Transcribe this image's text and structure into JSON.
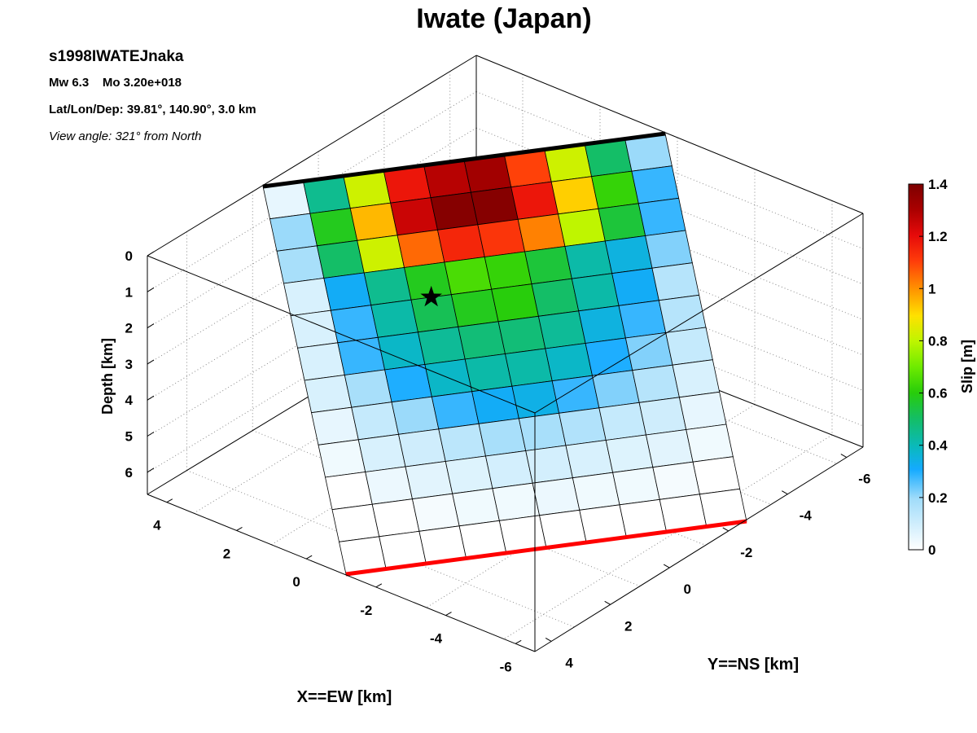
{
  "figure": {
    "title": "Iwate (Japan)",
    "event_id": "s1998IWATEJnaka",
    "magnitude_line": "Mw 6.3    Mo 3.20e+018",
    "location_line": "Lat/Lon/Dep: 39.81°, 140.90°, 3.0 km",
    "view_line": "View angle: 321° from North"
  },
  "chart_data": {
    "type": "heatmap",
    "subtype": "3d fault slip distribution",
    "title": "Iwate (Japan)",
    "axes": {
      "x": {
        "label": "X==EW [km]",
        "ticks": [
          "4",
          "2",
          "0",
          "-2",
          "-4",
          "-6"
        ]
      },
      "y": {
        "label": "Y==NS [km]",
        "ticks": [
          "4",
          "2",
          "0",
          "-2",
          "-4",
          "-6"
        ]
      },
      "z": {
        "label": "Depth [km]",
        "ticks": [
          "0",
          "1",
          "2",
          "3",
          "4",
          "5",
          "6"
        ]
      }
    },
    "grid": true,
    "colorbar": {
      "label": "Slip [m]",
      "range": [
        0,
        1.4
      ],
      "ticks": [
        "0",
        "0.2",
        "0.4",
        "0.6",
        "0.8",
        "1",
        "1.2",
        "1.4"
      ],
      "placement": "right"
    },
    "fault_top_edge_color": "#000000",
    "fault_bottom_edge_color": "#ff0000",
    "hypocenter_marker": "star",
    "hypocenter_cell": [
      4,
      3.5
    ],
    "slip_m": [
      [
        0.05,
        0.45,
        0.82,
        1.18,
        1.28,
        1.32,
        1.1,
        0.82,
        0.5,
        0.2
      ],
      [
        0.2,
        0.58,
        0.95,
        1.25,
        1.38,
        1.38,
        1.18,
        0.92,
        0.62,
        0.28
      ],
      [
        0.18,
        0.5,
        0.82,
        1.05,
        1.15,
        1.12,
        1.02,
        0.8,
        0.55,
        0.28
      ],
      [
        0.08,
        0.32,
        0.45,
        0.58,
        0.65,
        0.62,
        0.55,
        0.42,
        0.35,
        0.22
      ],
      [
        0.08,
        0.28,
        0.42,
        0.52,
        0.58,
        0.6,
        0.5,
        0.42,
        0.32,
        0.15
      ],
      [
        0.08,
        0.28,
        0.38,
        0.44,
        0.48,
        0.48,
        0.44,
        0.35,
        0.28,
        0.15
      ],
      [
        0.08,
        0.18,
        0.3,
        0.38,
        0.42,
        0.42,
        0.38,
        0.3,
        0.22,
        0.12
      ],
      [
        0.05,
        0.12,
        0.2,
        0.28,
        0.32,
        0.34,
        0.28,
        0.22,
        0.15,
        0.08
      ],
      [
        0.03,
        0.08,
        0.1,
        0.14,
        0.18,
        0.18,
        0.16,
        0.12,
        0.1,
        0.05
      ],
      [
        0.0,
        0.04,
        0.06,
        0.07,
        0.09,
        0.09,
        0.08,
        0.07,
        0.06,
        0.03
      ],
      [
        0.0,
        0.0,
        0.02,
        0.03,
        0.03,
        0.04,
        0.03,
        0.03,
        0.02,
        0.0
      ],
      [
        0.0,
        0.0,
        0.0,
        0.0,
        0.0,
        0.0,
        0.0,
        0.0,
        0.0,
        0.0
      ]
    ]
  }
}
